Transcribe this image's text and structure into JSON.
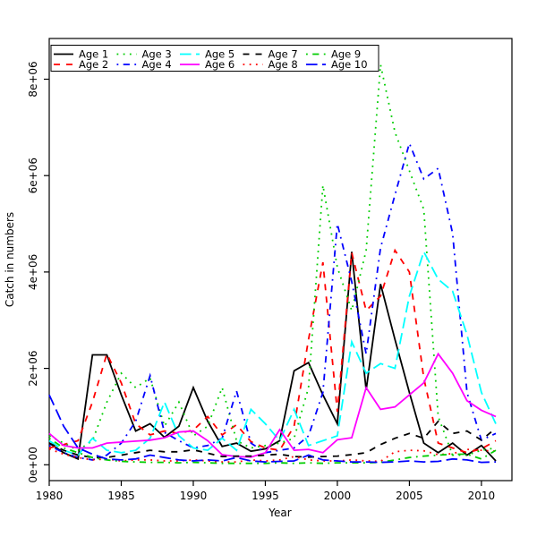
{
  "figure": {
    "background": "#ffffff"
  },
  "chart_data": {
    "type": "line",
    "title": "",
    "xlabel": "Year",
    "ylabel": "Catch in numbers",
    "xlim": [
      1980,
      2011
    ],
    "ylim": [
      0,
      8400000
    ],
    "grid": false,
    "x_ticks": [
      1980,
      1985,
      1990,
      1995,
      2000,
      2005,
      2010
    ],
    "y_ticks": [
      {
        "value": 0,
        "label": "0e+00"
      },
      {
        "value": 2000000,
        "label": "2e+06"
      },
      {
        "value": 4000000,
        "label": "4e+06"
      },
      {
        "value": 6000000,
        "label": "6e+06"
      },
      {
        "value": 8000000,
        "label": "8e+06"
      }
    ],
    "x": [
      1980,
      1981,
      1982,
      1983,
      1984,
      1985,
      1986,
      1987,
      1988,
      1989,
      1990,
      1991,
      1992,
      1993,
      1994,
      1995,
      1996,
      1997,
      1998,
      1999,
      2000,
      2001,
      2002,
      2003,
      2004,
      2005,
      2006,
      2007,
      2008,
      2009,
      2010,
      2011
    ],
    "legend": {
      "position": "topleft",
      "ncol": 5,
      "box": true
    },
    "series": [
      {
        "name": "Age 1",
        "color": "#000000",
        "linetype": "solid",
        "values": [
          450000,
          250000,
          120000,
          2280000,
          2280000,
          1450000,
          700000,
          850000,
          570000,
          800000,
          1600000,
          900000,
          380000,
          450000,
          280000,
          330000,
          500000,
          1950000,
          2120000,
          1450000,
          850000,
          4420000,
          1550000,
          3750000,
          2600000,
          1500000,
          450000,
          250000,
          450000,
          200000,
          400000,
          80000
        ]
      },
      {
        "name": "Age 2",
        "color": "#FF0000",
        "linetype": "dashed",
        "values": [
          350000,
          420000,
          500000,
          1300000,
          2300000,
          1700000,
          850000,
          620000,
          700000,
          650000,
          720000,
          1000000,
          620000,
          830000,
          480000,
          350000,
          300000,
          800000,
          2600000,
          4200000,
          1100000,
          4400000,
          3200000,
          3500000,
          4450000,
          4000000,
          1800000,
          450000,
          350000,
          250000,
          330000,
          500000
        ]
      },
      {
        "name": "Age 3",
        "color": "#00CD00",
        "linetype": "dotted",
        "values": [
          600000,
          450000,
          300000,
          500000,
          1300000,
          1900000,
          1600000,
          1800000,
          800000,
          1300000,
          600000,
          800000,
          1600000,
          500000,
          350000,
          400000,
          450000,
          550000,
          1600000,
          5800000,
          4100000,
          3200000,
          4450000,
          8300000,
          6900000,
          6100000,
          5300000,
          1000000,
          200000,
          200000,
          300000,
          350000
        ]
      },
      {
        "name": "Age 4",
        "color": "#0000FF",
        "linetype": "dotdash",
        "values": [
          400000,
          250000,
          150000,
          100000,
          200000,
          450000,
          900000,
          1850000,
          670000,
          500000,
          350000,
          400000,
          550000,
          1530000,
          450000,
          250000,
          300000,
          350000,
          600000,
          1500000,
          5000000,
          3800000,
          2300000,
          4500000,
          5600000,
          6670000,
          5930000,
          6150000,
          4800000,
          1500000,
          510000,
          650000
        ]
      },
      {
        "name": "Age 5",
        "color": "#00FFFF",
        "linetype": "longdash",
        "values": [
          500000,
          300000,
          200000,
          550000,
          300000,
          250000,
          300000,
          550000,
          1300000,
          600000,
          350000,
          300000,
          550000,
          300000,
          1150000,
          850000,
          500000,
          1150000,
          400000,
          500000,
          600000,
          2550000,
          1900000,
          2100000,
          2000000,
          3500000,
          4420000,
          3850000,
          3600000,
          2700000,
          1500000,
          850000
        ]
      },
      {
        "name": "Age 6",
        "color": "#FF00FF",
        "linetype": "solid",
        "values": [
          650000,
          400000,
          350000,
          350000,
          450000,
          470000,
          490000,
          510000,
          560000,
          680000,
          700000,
          500000,
          210000,
          170000,
          160000,
          250000,
          730000,
          300000,
          320000,
          250000,
          520000,
          560000,
          1600000,
          1150000,
          1200000,
          1450000,
          1700000,
          2300000,
          1900000,
          1330000,
          1130000,
          1000000
        ]
      },
      {
        "name": "Age 7",
        "color": "#000000",
        "linetype": "dashed",
        "values": [
          450000,
          300000,
          200000,
          150000,
          150000,
          200000,
          250000,
          300000,
          270000,
          270000,
          310000,
          240000,
          170000,
          180000,
          180000,
          200000,
          220000,
          170000,
          160000,
          170000,
          180000,
          210000,
          250000,
          420000,
          550000,
          650000,
          550000,
          900000,
          650000,
          700000,
          510000,
          760000
        ]
      },
      {
        "name": "Age 8",
        "color": "#FF0000",
        "linetype": "dotted",
        "values": [
          330000,
          220000,
          150000,
          100000,
          120000,
          80000,
          100000,
          100000,
          80000,
          80000,
          100000,
          80000,
          60000,
          60000,
          100000,
          80000,
          100000,
          170000,
          100000,
          80000,
          80000,
          100000,
          80000,
          70000,
          270000,
          300000,
          290000,
          210000,
          230000,
          320000,
          300000,
          280000
        ]
      },
      {
        "name": "Age 9",
        "color": "#00CD00",
        "linetype": "dotdash",
        "values": [
          550000,
          350000,
          250000,
          150000,
          100000,
          70000,
          60000,
          50000,
          50000,
          40000,
          50000,
          40000,
          30000,
          30000,
          30000,
          30000,
          40000,
          30000,
          40000,
          30000,
          40000,
          40000,
          40000,
          50000,
          100000,
          150000,
          180000,
          200000,
          220000,
          220000,
          120000,
          300000
        ]
      },
      {
        "name": "Age 10",
        "color": "#0000FF",
        "linetype": "longdash",
        "values": [
          1450000,
          800000,
          350000,
          220000,
          120000,
          100000,
          120000,
          200000,
          150000,
          100000,
          80000,
          100000,
          80000,
          150000,
          80000,
          60000,
          70000,
          80000,
          200000,
          100000,
          80000,
          60000,
          60000,
          50000,
          60000,
          80000,
          60000,
          70000,
          120000,
          100000,
          50000,
          60000
        ]
      }
    ]
  }
}
